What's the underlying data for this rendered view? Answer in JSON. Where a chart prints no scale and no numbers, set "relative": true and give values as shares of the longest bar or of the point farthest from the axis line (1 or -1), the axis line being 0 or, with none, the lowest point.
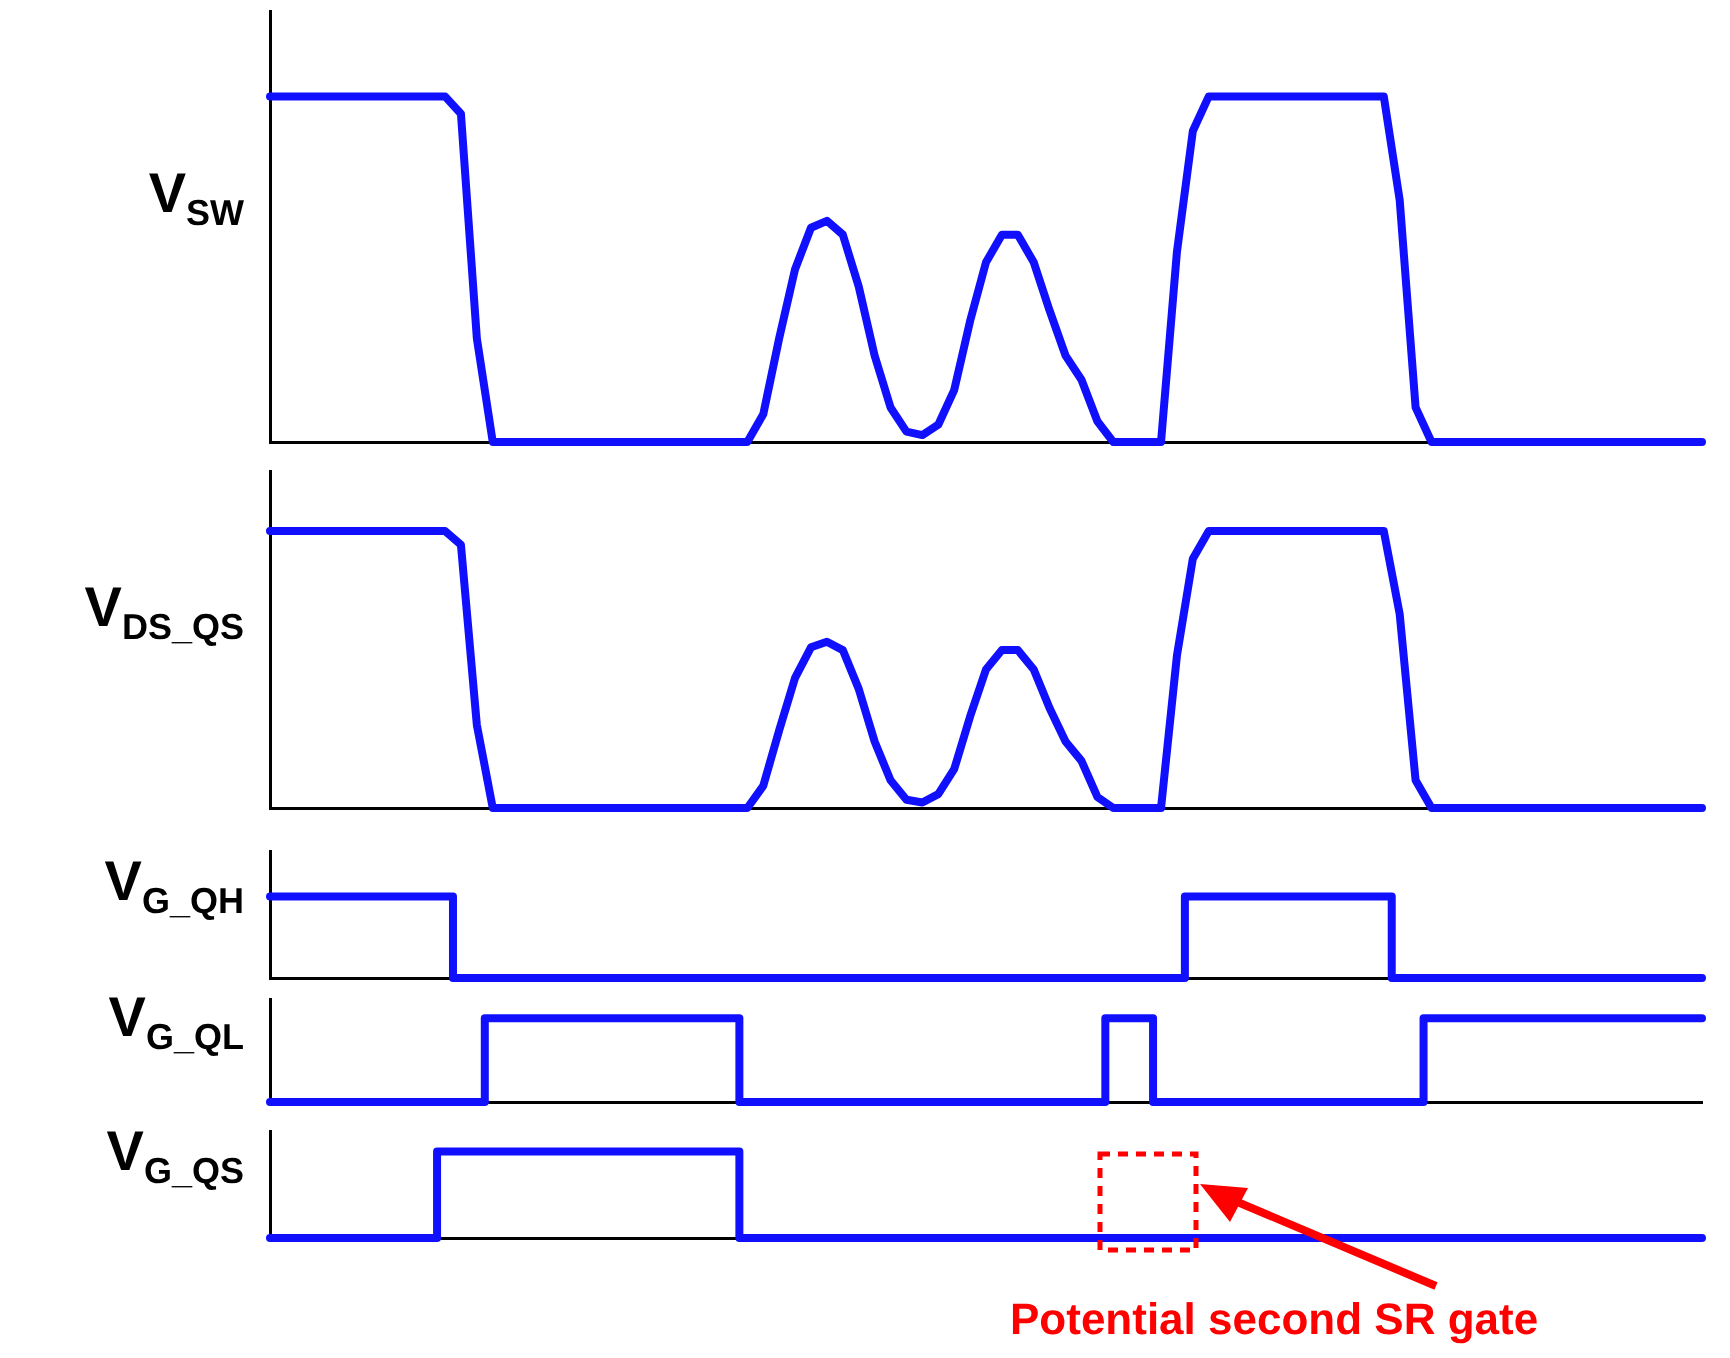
{
  "chart_data": [
    {
      "type": "line",
      "ylabel": "V$_{SW}$",
      "relative": true,
      "categories": [
        null,
        null,
        null,
        null,
        null,
        null,
        null,
        null,
        null,
        null,
        null,
        null,
        null,
        null,
        null,
        null,
        null,
        null,
        null,
        null,
        null,
        null,
        null,
        null,
        null,
        null,
        null,
        null,
        null,
        null,
        null,
        null,
        null,
        null,
        null,
        null,
        null,
        null,
        null,
        null,
        null,
        null,
        null,
        null,
        null,
        null,
        null,
        null,
        null,
        null,
        null,
        null,
        null,
        null,
        null,
        null,
        null,
        null,
        null,
        null,
        null,
        null,
        null,
        null,
        null,
        null,
        null,
        null,
        null,
        null,
        null,
        null,
        null,
        null,
        null,
        null,
        null,
        null,
        null,
        null,
        null,
        null,
        null,
        null,
        null,
        null,
        null,
        null,
        null,
        null,
        null
      ],
      "series": [
        {
          "color": "#1010ff",
          "values": [
            1,
            1,
            1,
            1,
            1,
            1,
            1,
            1,
            1,
            1,
            1,
            1,
            0.95,
            0.3,
            0,
            0,
            0,
            0,
            0,
            0,
            0,
            0,
            0,
            0,
            0,
            0,
            0,
            0,
            0,
            0,
            0,
            0.08,
            0.3,
            0.5,
            0.62,
            0.64,
            0.6,
            0.45,
            0.25,
            0.1,
            0.03,
            0.02,
            0.05,
            0.15,
            0.35,
            0.52,
            0.6,
            0.6,
            0.52,
            0.38,
            0.25,
            0.18,
            0.06,
            0,
            0,
            0,
            0,
            0.55,
            0.9,
            1,
            1,
            1,
            1,
            1,
            1,
            1,
            1,
            1,
            1,
            1,
            1,
            0.7,
            0.1,
            0,
            0,
            0,
            0,
            0,
            0,
            0,
            0,
            0,
            0,
            0,
            0,
            0,
            0,
            0,
            0,
            0,
            0
          ]
        }
      ]
    },
    {
      "type": "line",
      "ylabel": "V$_{DS_QS}$",
      "relative": true,
      "categories": [
        null,
        null,
        null,
        null,
        null,
        null,
        null,
        null,
        null,
        null,
        null,
        null,
        null,
        null,
        null,
        null,
        null,
        null,
        null,
        null,
        null,
        null,
        null,
        null,
        null,
        null,
        null,
        null,
        null,
        null,
        null,
        null,
        null,
        null,
        null,
        null,
        null,
        null,
        null,
        null,
        null,
        null,
        null,
        null,
        null,
        null,
        null,
        null,
        null,
        null,
        null,
        null,
        null,
        null,
        null,
        null,
        null,
        null,
        null,
        null,
        null,
        null,
        null,
        null,
        null,
        null,
        null,
        null,
        null,
        null,
        null,
        null,
        null,
        null,
        null,
        null,
        null,
        null,
        null,
        null,
        null,
        null,
        null,
        null,
        null,
        null,
        null,
        null,
        null,
        null,
        null
      ],
      "series": [
        {
          "color": "#1010ff",
          "values": [
            1,
            1,
            1,
            1,
            1,
            1,
            1,
            1,
            1,
            1,
            1,
            1,
            0.95,
            0.3,
            0,
            0,
            0,
            0,
            0,
            0,
            0,
            0,
            0,
            0,
            0,
            0,
            0,
            0,
            0,
            0,
            0,
            0.08,
            0.28,
            0.47,
            0.58,
            0.6,
            0.57,
            0.43,
            0.24,
            0.1,
            0.03,
            0.02,
            0.05,
            0.14,
            0.33,
            0.5,
            0.57,
            0.57,
            0.5,
            0.36,
            0.24,
            0.17,
            0.04,
            0,
            0,
            0,
            0,
            0.55,
            0.9,
            1,
            1,
            1,
            1,
            1,
            1,
            1,
            1,
            1,
            1,
            1,
            1,
            0.7,
            0.1,
            0,
            0,
            0,
            0,
            0,
            0,
            0,
            0,
            0,
            0,
            0,
            0,
            0,
            0,
            0,
            0,
            0,
            0
          ]
        }
      ]
    },
    {
      "type": "step",
      "ylabel": "V$_{G_QH}$",
      "relative": true,
      "categories": [
        null,
        null,
        null,
        null,
        null,
        null,
        null,
        null,
        null,
        null,
        null,
        null,
        null,
        null,
        null,
        null,
        null,
        null,
        null,
        null,
        null,
        null,
        null,
        null,
        null,
        null,
        null,
        null,
        null,
        null,
        null,
        null,
        null,
        null,
        null,
        null,
        null,
        null,
        null,
        null,
        null,
        null,
        null,
        null,
        null,
        null,
        null,
        null,
        null,
        null,
        null,
        null,
        null,
        null,
        null,
        null,
        null,
        null,
        null,
        null,
        null,
        null,
        null,
        null,
        null,
        null,
        null,
        null,
        null,
        null,
        null,
        null,
        null,
        null,
        null,
        null,
        null,
        null,
        null,
        null,
        null,
        null,
        null,
        null,
        null,
        null,
        null,
        null,
        null,
        null,
        null
      ],
      "series": [
        {
          "color": "#1010ff",
          "values": [
            1,
            1,
            1,
            1,
            1,
            1,
            1,
            1,
            1,
            1,
            1,
            1,
            0,
            0,
            0,
            0,
            0,
            0,
            0,
            0,
            0,
            0,
            0,
            0,
            0,
            0,
            0,
            0,
            0,
            0,
            0,
            0,
            0,
            0,
            0,
            0,
            0,
            0,
            0,
            0,
            0,
            0,
            0,
            0,
            0,
            0,
            0,
            0,
            0,
            0,
            0,
            0,
            0,
            0,
            0,
            0,
            0,
            0,
            1,
            1,
            1,
            1,
            1,
            1,
            1,
            1,
            1,
            1,
            1,
            1,
            1,
            0,
            0,
            0,
            0,
            0,
            0,
            0,
            0,
            0,
            0,
            0,
            0,
            0,
            0,
            0,
            0,
            0,
            0,
            0,
            0
          ]
        }
      ]
    },
    {
      "type": "step",
      "ylabel": "V$_{G_QL}$",
      "relative": true,
      "categories": [
        null,
        null,
        null,
        null,
        null,
        null,
        null,
        null,
        null,
        null,
        null,
        null,
        null,
        null,
        null,
        null,
        null,
        null,
        null,
        null,
        null,
        null,
        null,
        null,
        null,
        null,
        null,
        null,
        null,
        null,
        null,
        null,
        null,
        null,
        null,
        null,
        null,
        null,
        null,
        null,
        null,
        null,
        null,
        null,
        null,
        null,
        null,
        null,
        null,
        null,
        null,
        null,
        null,
        null,
        null,
        null,
        null,
        null,
        null,
        null,
        null,
        null,
        null,
        null,
        null,
        null,
        null,
        null,
        null,
        null,
        null,
        null,
        null,
        null,
        null,
        null,
        null,
        null,
        null,
        null,
        null,
        null,
        null,
        null,
        null,
        null,
        null,
        null,
        null,
        null,
        null
      ],
      "series": [
        {
          "color": "#1010ff",
          "values": [
            0,
            0,
            0,
            0,
            0,
            0,
            0,
            0,
            0,
            0,
            0,
            0,
            0,
            0,
            1,
            1,
            1,
            1,
            1,
            1,
            1,
            1,
            1,
            1,
            1,
            1,
            1,
            1,
            1,
            1,
            0,
            0,
            0,
            0,
            0,
            0,
            0,
            0,
            0,
            0,
            0,
            0,
            0,
            0,
            0,
            0,
            0,
            0,
            0,
            0,
            0,
            0,
            0,
            1,
            1,
            1,
            0,
            0,
            0,
            0,
            0,
            0,
            0,
            0,
            0,
            0,
            0,
            0,
            0,
            0,
            0,
            0,
            0,
            1,
            1,
            1,
            1,
            1,
            1,
            1,
            1,
            1,
            1,
            1,
            1,
            1,
            1,
            1,
            1,
            1,
            1
          ]
        }
      ]
    },
    {
      "type": "step",
      "ylabel": "V$_{G_QS}$",
      "relative": true,
      "annotations": [
        "Potential second SR gate"
      ],
      "categories": [
        null,
        null,
        null,
        null,
        null,
        null,
        null,
        null,
        null,
        null,
        null,
        null,
        null,
        null,
        null,
        null,
        null,
        null,
        null,
        null,
        null,
        null,
        null,
        null,
        null,
        null,
        null,
        null,
        null,
        null,
        null,
        null,
        null,
        null,
        null,
        null,
        null,
        null,
        null,
        null,
        null,
        null,
        null,
        null,
        null,
        null,
        null,
        null,
        null,
        null,
        null,
        null,
        null,
        null,
        null,
        null,
        null,
        null,
        null,
        null,
        null,
        null,
        null,
        null,
        null,
        null,
        null,
        null,
        null,
        null,
        null,
        null,
        null,
        null,
        null,
        null,
        null,
        null,
        null,
        null,
        null,
        null,
        null,
        null,
        null,
        null,
        null,
        null,
        null,
        null,
        null
      ],
      "series": [
        {
          "color": "#1010ff",
          "values": [
            0,
            0,
            0,
            0,
            0,
            0,
            0,
            0,
            0,
            0,
            0,
            1,
            1,
            1,
            1,
            1,
            1,
            1,
            1,
            1,
            1,
            1,
            1,
            1,
            1,
            1,
            1,
            1,
            1,
            1,
            0,
            0,
            0,
            0,
            0,
            0,
            0,
            0,
            0,
            0,
            0,
            0,
            0,
            0,
            0,
            0,
            0,
            0,
            0,
            0,
            0,
            0,
            0,
            0,
            0,
            0,
            0,
            0,
            0,
            0,
            0,
            0,
            0,
            0,
            0,
            0,
            0,
            0,
            0,
            0,
            0,
            0,
            0,
            0,
            0,
            0,
            0,
            0,
            0,
            0,
            0,
            0,
            0,
            0,
            0,
            0,
            0,
            0,
            0,
            0,
            0
          ]
        }
      ]
    }
  ]
}
